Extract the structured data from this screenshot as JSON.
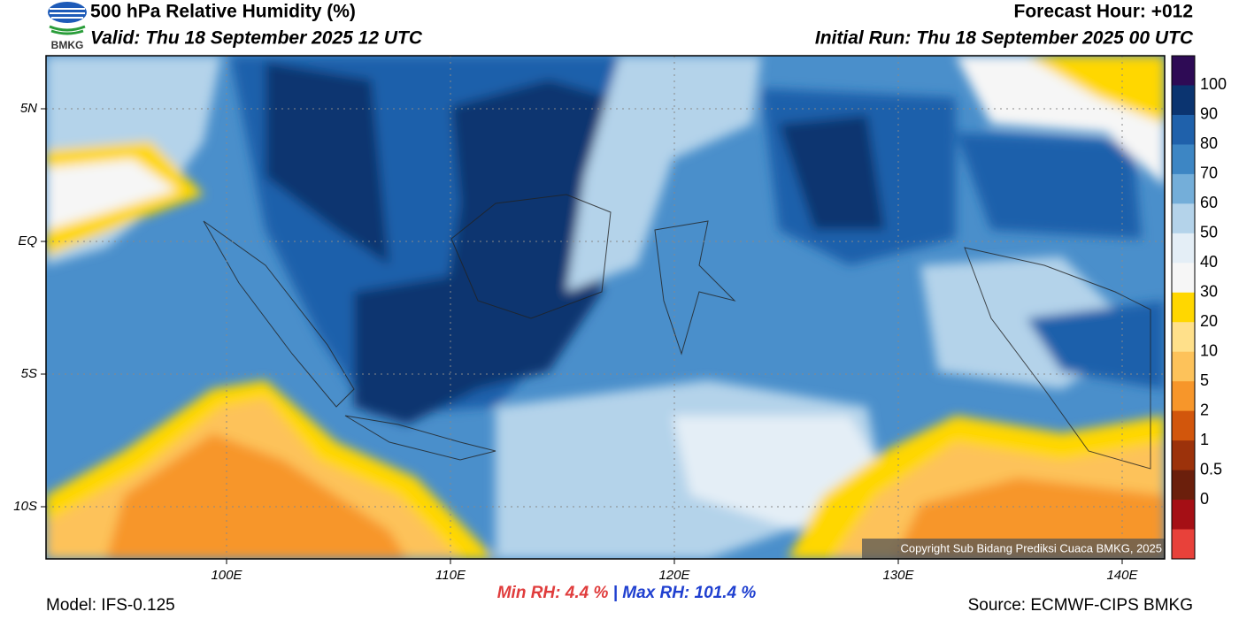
{
  "header": {
    "title": "500 hPa Relative Humidity (%)",
    "valid": "Valid: Thu 18 September 2025 12 UTC",
    "forecast_hour": "Forecast Hour: +012",
    "initial_run": "Initial Run: Thu 18 September 2025 00 UTC",
    "logo": "BMKG"
  },
  "map": {
    "lat_labels": [
      "5N",
      "EQ",
      "5S",
      "10S"
    ],
    "lon_labels": [
      "100E",
      "110E",
      "120E",
      "130E",
      "140E"
    ],
    "copyright": "Copyright Sub Bidang Prediksi Cuaca BMKG, 2025"
  },
  "colorbar": {
    "labels": [
      "100",
      "90",
      "80",
      "70",
      "60",
      "50",
      "40",
      "30",
      "20",
      "10",
      "5",
      "2",
      "1",
      "0.5",
      "0"
    ],
    "colors": [
      "#2e0b55",
      "#0b3470",
      "#1f61ab",
      "#3d86c4",
      "#74aed9",
      "#b4d3ea",
      "#e4eef6",
      "#f6f6f6",
      "#ffd700",
      "#ffe08a",
      "#fdc25a",
      "#f7962a",
      "#d2560c",
      "#9c320b",
      "#6b1f0c",
      "#a50f15",
      "#e8413a"
    ]
  },
  "footer": {
    "model": "Model: IFS-0.125",
    "min_label": "Min RH:",
    "min_value": "4.4 %",
    "separator": "|",
    "max_label": "Max RH:",
    "max_value": "101.4 %",
    "source": "Source: ECMWF-CIPS BMKG"
  }
}
